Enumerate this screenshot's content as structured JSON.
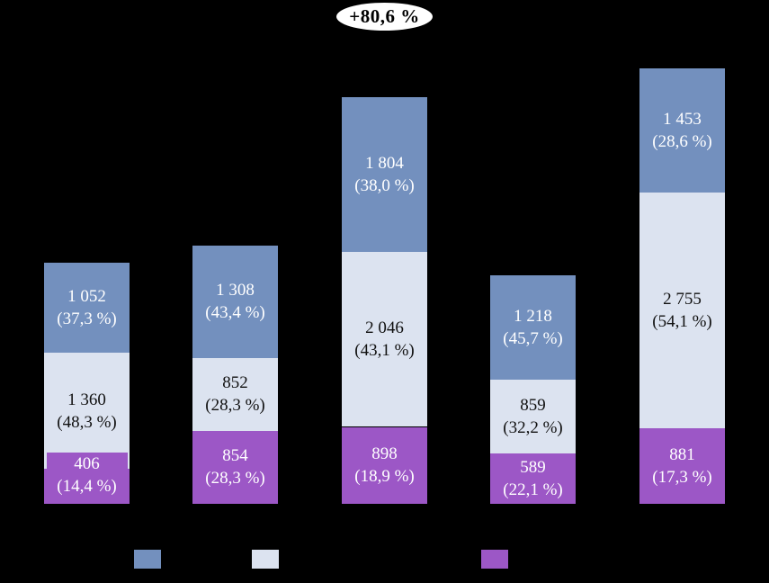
{
  "annotation": {
    "text": "+80,6 %"
  },
  "colors": {
    "background": "#000000",
    "series_blue": "#7390BE",
    "series_gray": "#DCE3F0",
    "series_purple": "#9C57C6",
    "badge_background": "#FFFFFF",
    "badge_text": "#000000"
  },
  "chart_data": {
    "type": "bar",
    "stacked": true,
    "orientation": "vertical",
    "num_bars": 5,
    "axes_visible": false,
    "x_tick_labels_visible": false,
    "annotation": "+80,6 %",
    "legend": {
      "position": "bottom",
      "labels_visible": false,
      "swatch_colors": [
        "#7390BE",
        "#DCE3F0",
        "#9C57C6"
      ]
    },
    "series": [
      {
        "name": "top-blue",
        "color": "#7390BE",
        "label_color": "#FFFFFF",
        "values": [
          1052,
          1308,
          1804,
          1218,
          1453
        ],
        "value_labels": [
          "1 052",
          "1 308",
          "1 804",
          "1 218",
          "1 453"
        ],
        "pct_labels": [
          "(37,3 %)",
          "(43,4 %)",
          "(38,0 %)",
          "(45,7 %)",
          "(28,6 %)"
        ]
      },
      {
        "name": "middle-gray",
        "color": "#DCE3F0",
        "label_color": "#111111",
        "values": [
          1360,
          852,
          2046,
          859,
          2755
        ],
        "value_labels": [
          "1 360",
          "852",
          "2 046",
          "859",
          "2 755"
        ],
        "pct_labels": [
          "(48,3 %)",
          "(28,3 %)",
          "(43,1 %)",
          "(32,2 %)",
          "(54,1 %)"
        ]
      },
      {
        "name": "bottom-purple",
        "color": "#9C57C6",
        "label_color": "#FFFFFF",
        "values": [
          406,
          854,
          898,
          589,
          881
        ],
        "value_labels": [
          "406",
          "854",
          "898",
          "589",
          "881"
        ],
        "pct_labels": [
          "(14,4 %)",
          "(28,3 %)",
          "(18,9 %)",
          "(22,1 %)",
          "(17,3 %)"
        ]
      }
    ]
  }
}
